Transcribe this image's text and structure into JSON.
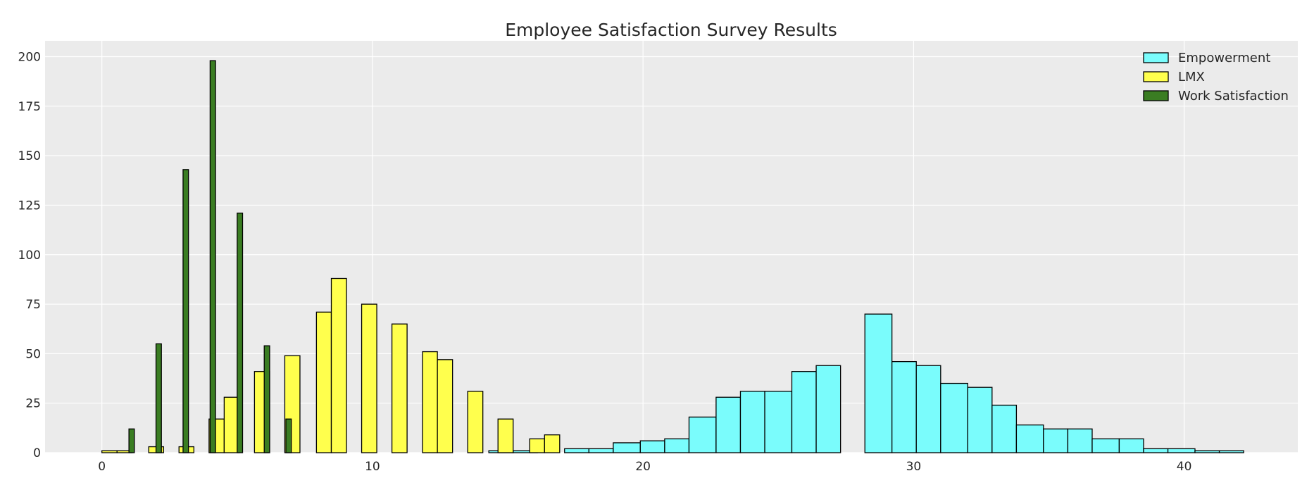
{
  "chart_data": {
    "type": "bar",
    "title": "Employee Satisfaction Survey Results",
    "xlabel": "",
    "ylabel": "",
    "xlim": [
      -2.1,
      44.2
    ],
    "ylim": [
      0,
      208
    ],
    "x_ticks": [
      0,
      10,
      20,
      30,
      40
    ],
    "y_ticks": [
      0,
      25,
      50,
      75,
      100,
      125,
      150,
      175,
      200
    ],
    "grid": true,
    "legend_position": "top-right",
    "series": [
      {
        "name": "Empowerment",
        "color": "#7afcfc",
        "bars": [
          {
            "x0": 14.3,
            "x1": 15.2,
            "value": 1
          },
          {
            "x0": 15.2,
            "x1": 16.1,
            "value": 1
          },
          {
            "x0": 17.1,
            "x1": 18.0,
            "value": 2
          },
          {
            "x0": 18.0,
            "x1": 18.9,
            "value": 2
          },
          {
            "x0": 18.9,
            "x1": 19.9,
            "value": 5
          },
          {
            "x0": 19.9,
            "x1": 20.8,
            "value": 6
          },
          {
            "x0": 20.8,
            "x1": 21.7,
            "value": 7
          },
          {
            "x0": 21.7,
            "x1": 22.7,
            "value": 18
          },
          {
            "x0": 22.7,
            "x1": 23.6,
            "value": 28
          },
          {
            "x0": 23.6,
            "x1": 24.5,
            "value": 31
          },
          {
            "x0": 24.5,
            "x1": 25.5,
            "value": 31
          },
          {
            "x0": 25.5,
            "x1": 26.4,
            "value": 41
          },
          {
            "x0": 26.4,
            "x1": 27.3,
            "value": 44
          },
          {
            "x0": 28.2,
            "x1": 29.2,
            "value": 70
          },
          {
            "x0": 29.2,
            "x1": 30.1,
            "value": 46
          },
          {
            "x0": 30.1,
            "x1": 31.0,
            "value": 44
          },
          {
            "x0": 31.0,
            "x1": 32.0,
            "value": 35
          },
          {
            "x0": 32.0,
            "x1": 32.9,
            "value": 33
          },
          {
            "x0": 32.9,
            "x1": 33.8,
            "value": 24
          },
          {
            "x0": 33.8,
            "x1": 34.8,
            "value": 14
          },
          {
            "x0": 34.8,
            "x1": 35.7,
            "value": 12
          },
          {
            "x0": 35.7,
            "x1": 36.6,
            "value": 12
          },
          {
            "x0": 36.6,
            "x1": 37.6,
            "value": 7
          },
          {
            "x0": 37.6,
            "x1": 38.5,
            "value": 7
          },
          {
            "x0": 38.5,
            "x1": 39.4,
            "value": 2
          },
          {
            "x0": 39.4,
            "x1": 40.4,
            "value": 2
          },
          {
            "x0": 40.4,
            "x1": 41.3,
            "value": 1
          },
          {
            "x0": 41.3,
            "x1": 42.2,
            "value": 1
          }
        ]
      },
      {
        "name": "LMX",
        "color": "#ffff4d",
        "bars": [
          {
            "x0": 0.0,
            "x1": 0.56,
            "value": 1
          },
          {
            "x0": 0.56,
            "x1": 1.12,
            "value": 1
          },
          {
            "x0": 1.73,
            "x1": 2.28,
            "value": 3
          },
          {
            "x0": 2.85,
            "x1": 3.4,
            "value": 3
          },
          {
            "x0": 3.96,
            "x1": 4.52,
            "value": 17
          },
          {
            "x0": 4.52,
            "x1": 5.08,
            "value": 28
          },
          {
            "x0": 5.64,
            "x1": 6.2,
            "value": 41
          },
          {
            "x0": 6.76,
            "x1": 7.32,
            "value": 49
          },
          {
            "x0": 7.93,
            "x1": 8.48,
            "value": 71
          },
          {
            "x0": 8.48,
            "x1": 9.04,
            "value": 88
          },
          {
            "x0": 9.6,
            "x1": 10.16,
            "value": 75
          },
          {
            "x0": 10.72,
            "x1": 11.28,
            "value": 65
          },
          {
            "x0": 11.85,
            "x1": 12.4,
            "value": 51
          },
          {
            "x0": 12.4,
            "x1": 12.96,
            "value": 47
          },
          {
            "x0": 13.52,
            "x1": 14.08,
            "value": 31
          },
          {
            "x0": 14.64,
            "x1": 15.2,
            "value": 17
          },
          {
            "x0": 15.81,
            "x1": 16.36,
            "value": 7
          },
          {
            "x0": 16.36,
            "x1": 16.92,
            "value": 9
          }
        ]
      },
      {
        "name": "Work Satisfaction",
        "color": "#3a7d22",
        "bars": [
          {
            "x0": 1.0,
            "x1": 1.2,
            "value": 12
          },
          {
            "x0": 2.0,
            "x1": 2.2,
            "value": 55
          },
          {
            "x0": 3.0,
            "x1": 3.2,
            "value": 143
          },
          {
            "x0": 4.0,
            "x1": 4.2,
            "value": 198
          },
          {
            "x0": 5.0,
            "x1": 5.2,
            "value": 121
          },
          {
            "x0": 6.0,
            "x1": 6.2,
            "value": 54
          },
          {
            "x0": 6.8,
            "x1": 7.0,
            "value": 17
          }
        ]
      }
    ]
  }
}
